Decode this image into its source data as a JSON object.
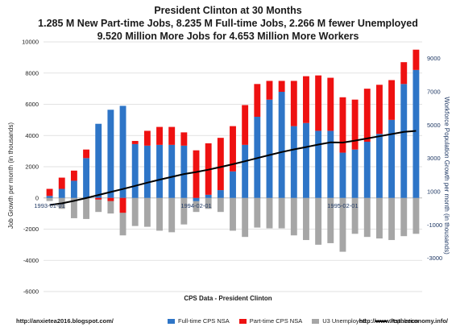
{
  "title_lines": [
    "President Clinton at 30 Months",
    "1.285 M New Part-time Jobs, 8.235 M Full-time Jobs, 2.266 M fewer Unemployed",
    "9.520 Million More Jobs for 4.653 Million More Workers"
  ],
  "x_axis_title": "CPS Data - President Clinton",
  "footer_left": "http://anxietea2016.blogspot.com/",
  "footer_right": "http://www.itstheeconomy.info/",
  "colors": {
    "full_time": "#2e75c7",
    "part_time": "#ee1111",
    "unemployed": "#a6a6a6",
    "population": "#000000"
  },
  "chart_data": {
    "type": "bar",
    "title": "President Clinton at 30 Months",
    "xlabel": "CPS Data - President Clinton",
    "ylabel": "Job Growth per month (in thousands)",
    "y2label": "Workforce Population Growth per month (in thousands)",
    "ylim": [
      -6000,
      10000
    ],
    "y_ticks": [
      -6000,
      -4000,
      -2000,
      0,
      2000,
      4000,
      6000,
      8000,
      10000
    ],
    "y2lim": [
      -5000,
      10000
    ],
    "y2_ticks": [
      -3000,
      -1000,
      1000,
      3000,
      5000,
      7000,
      9000
    ],
    "date_labels": [
      {
        "index": 0,
        "text": "1993-01-01"
      },
      {
        "index": 12,
        "text": "1994-02-01"
      },
      {
        "index": 24,
        "text": "1995-02-01"
      }
    ],
    "legend": [
      "Full-time CPS NSA",
      "Part-time CPS NSA",
      "U3 Unemployed",
      "Population"
    ],
    "grid": true,
    "series": [
      {
        "name": "Full-time CPS NSA",
        "stack": "pos",
        "values": [
          130,
          580,
          1100,
          2550,
          4750,
          5650,
          5900,
          3450,
          3350,
          3400,
          3400,
          3350,
          -200,
          200,
          500,
          1700,
          3400,
          5200,
          6300,
          6800,
          4600,
          4800,
          4300,
          4300,
          2900,
          3100,
          3600,
          4100,
          5000,
          7300,
          8200
        ]
      },
      {
        "name": "Part-time CPS NSA",
        "stack": "pos",
        "values": [
          450,
          720,
          650,
          550,
          -100,
          -200,
          -950,
          200,
          950,
          1150,
          1150,
          850,
          3050,
          3300,
          3350,
          2900,
          2550,
          2100,
          1200,
          700,
          2900,
          3000,
          3550,
          3400,
          3550,
          3200,
          3400,
          3150,
          2550,
          1400,
          1300
        ]
      },
      {
        "name": "U3 Unemployed",
        "values": [
          -200,
          -700,
          -1300,
          -1350,
          -900,
          -1000,
          -2400,
          -1800,
          -1850,
          -2100,
          -2200,
          -1700,
          -900,
          -700,
          -900,
          -2100,
          -2500,
          -1900,
          -1950,
          -1950,
          -2400,
          -2700,
          -3000,
          -2900,
          -3450,
          -2300,
          -2500,
          -2600,
          -2700,
          -2450,
          -2300
        ]
      },
      {
        "name": "Population",
        "axis": "right",
        "values": [
          200,
          300,
          450,
          620,
          800,
          980,
          1160,
          1350,
          1540,
          1720,
          1890,
          2060,
          2180,
          2320,
          2480,
          2650,
          2830,
          3020,
          3200,
          3380,
          3540,
          3680,
          3830,
          3960,
          3950,
          4070,
          4200,
          4330,
          4460,
          4590,
          4653
        ]
      }
    ]
  }
}
